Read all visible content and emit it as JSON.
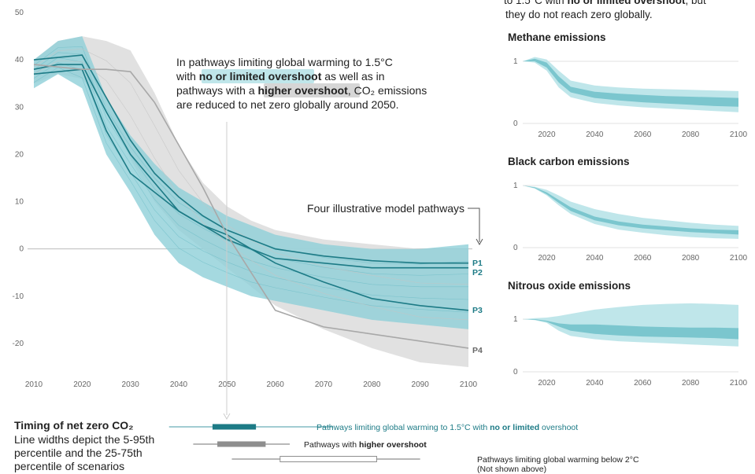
{
  "top_right_note": {
    "line1_prefix": "to 1.5°C with ",
    "line1_highlight": "no or limited overshoot",
    "line1_suffix": ", but",
    "line2": "they do not reach zero globally."
  },
  "annotation": {
    "line1": "In pathways limiting global warming to 1.5°C",
    "line2_prefix": "with ",
    "line2_highlight": "no or limited overshoot",
    "line2_suffix": " as well as in",
    "line3_prefix": "pathways with a ",
    "line3_highlight": "higher overshoot",
    "line3_suffix": ", CO₂ emissions",
    "line4": "are reduced to net zero globally around 2050."
  },
  "pathways_label": "Four illustrative model pathways",
  "colors": {
    "blue_dark": "#1d7b86",
    "blue_band": "#8fd0d8",
    "blue_band_light": "#bfe6ea",
    "grey_band": "#dcdcdc",
    "grey_line": "#a8a8a8"
  },
  "chart_data": [
    {
      "type": "area",
      "title": "",
      "xlabel": "",
      "ylabel": "",
      "xlim": [
        2010,
        2100
      ],
      "ylim": [
        -25,
        50
      ],
      "x_ticks": [
        2010,
        2020,
        2030,
        2040,
        2050,
        2060,
        2070,
        2080,
        2090,
        2100
      ],
      "y_ticks": [
        50,
        40,
        30,
        20,
        10,
        0,
        -10,
        -20
      ],
      "x": [
        2010,
        2015,
        2020,
        2025,
        2030,
        2035,
        2040,
        2045,
        2050,
        2055,
        2060,
        2070,
        2080,
        2090,
        2100
      ],
      "band_no_or_limited_overshoot": {
        "upper": [
          40,
          44,
          45,
          32,
          24,
          18,
          13,
          10,
          7,
          5,
          3,
          1,
          0,
          0,
          1
        ],
        "lower": [
          34,
          37,
          34,
          20,
          12,
          3,
          -3,
          -6,
          -8,
          -10,
          -11,
          -13,
          -15,
          -16,
          -17
        ]
      },
      "band_higher_overshoot": {
        "upper": [
          40,
          44,
          45,
          44,
          42,
          33,
          22,
          14,
          9,
          6,
          4,
          2,
          1,
          0,
          0
        ],
        "lower": [
          35,
          37,
          36,
          30,
          19,
          10,
          4,
          0,
          -4,
          -8,
          -12,
          -17,
          -21,
          -24,
          -25
        ]
      },
      "series": [
        {
          "name": "P1",
          "values": [
            40,
            40.5,
            41,
            32,
            23,
            16,
            11,
            7,
            4,
            2,
            0,
            -1.5,
            -2.5,
            -3,
            -3
          ]
        },
        {
          "name": "P2",
          "values": [
            38,
            39,
            39,
            29,
            20,
            14,
            8,
            5,
            2,
            0,
            -2,
            -3,
            -4,
            -4,
            -4
          ]
        },
        {
          "name": "P3",
          "values": [
            37,
            37.5,
            38,
            25,
            16,
            12,
            8,
            5,
            3,
            0,
            -3,
            -7,
            -10.5,
            -12,
            -13
          ]
        },
        {
          "name": "P4",
          "values": [
            39,
            38.5,
            38,
            38,
            37.5,
            31,
            22,
            13,
            3,
            -5,
            -13,
            -16.5,
            -18,
            -19.5,
            -21
          ]
        }
      ]
    },
    {
      "type": "area",
      "title": "Methane emissions",
      "xlim": [
        2010,
        2100
      ],
      "ylim": [
        0,
        1
      ],
      "x_ticks": [
        2020,
        2040,
        2060,
        2080,
        2100
      ],
      "y_ticks": [
        1,
        0
      ],
      "x": [
        2010,
        2015,
        2020,
        2025,
        2030,
        2040,
        2050,
        2060,
        2070,
        2080,
        2090,
        2100
      ],
      "outer": {
        "upper": [
          1,
          1.07,
          1.03,
          0.85,
          0.69,
          0.61,
          0.58,
          0.56,
          0.55,
          0.54,
          0.53,
          0.52
        ],
        "lower": [
          1,
          0.98,
          0.85,
          0.58,
          0.42,
          0.33,
          0.29,
          0.26,
          0.24,
          0.22,
          0.2,
          0.18
        ]
      },
      "inner": {
        "upper": [
          1,
          1.04,
          0.98,
          0.76,
          0.59,
          0.51,
          0.48,
          0.46,
          0.44,
          0.43,
          0.42,
          0.41
        ],
        "lower": [
          1,
          1.0,
          0.9,
          0.66,
          0.5,
          0.41,
          0.37,
          0.34,
          0.32,
          0.3,
          0.28,
          0.27
        ]
      }
    },
    {
      "type": "area",
      "title": "Black carbon emissions",
      "xlim": [
        2010,
        2100
      ],
      "ylim": [
        0,
        1
      ],
      "x_ticks": [
        2020,
        2040,
        2060,
        2080,
        2100
      ],
      "y_ticks": [
        1,
        0
      ],
      "x": [
        2010,
        2015,
        2020,
        2025,
        2030,
        2040,
        2050,
        2060,
        2070,
        2080,
        2090,
        2100
      ],
      "outer": {
        "upper": [
          1,
          0.98,
          0.93,
          0.84,
          0.74,
          0.62,
          0.54,
          0.48,
          0.44,
          0.4,
          0.37,
          0.35
        ],
        "lower": [
          1,
          0.95,
          0.84,
          0.68,
          0.54,
          0.38,
          0.29,
          0.24,
          0.2,
          0.17,
          0.15,
          0.14
        ]
      },
      "inner": {
        "upper": [
          1,
          0.97,
          0.89,
          0.77,
          0.65,
          0.5,
          0.42,
          0.37,
          0.34,
          0.31,
          0.29,
          0.28
        ],
        "lower": [
          1,
          0.96,
          0.86,
          0.72,
          0.59,
          0.44,
          0.36,
          0.31,
          0.28,
          0.25,
          0.23,
          0.21
        ]
      }
    },
    {
      "type": "area",
      "title": "Nitrous oxide emissions",
      "xlim": [
        2010,
        2100
      ],
      "ylim": [
        0,
        1
      ],
      "x_ticks": [
        2020,
        2040,
        2060,
        2080,
        2100
      ],
      "y_ticks": [
        1,
        0
      ],
      "x": [
        2010,
        2015,
        2020,
        2025,
        2030,
        2040,
        2050,
        2060,
        2070,
        2080,
        2090,
        2100
      ],
      "outer": {
        "upper": [
          1,
          1.02,
          1.03,
          1.06,
          1.1,
          1.18,
          1.23,
          1.27,
          1.29,
          1.3,
          1.29,
          1.27
        ],
        "lower": [
          1,
          0.98,
          0.93,
          0.78,
          0.68,
          0.62,
          0.58,
          0.56,
          0.54,
          0.52,
          0.5,
          0.48
        ]
      },
      "inner": {
        "upper": [
          1,
          1.0,
          0.97,
          0.92,
          0.9,
          0.9,
          0.88,
          0.86,
          0.85,
          0.84,
          0.84,
          0.83
        ],
        "lower": [
          1,
          0.99,
          0.95,
          0.86,
          0.78,
          0.72,
          0.69,
          0.67,
          0.66,
          0.65,
          0.64,
          0.62
        ]
      }
    }
  ],
  "timing": {
    "title": "Timing of net zero CO₂",
    "desc_line1": "Line widths depict the 5-95th",
    "desc_line2": "percentile and the 25-75th",
    "desc_line3": "percentile of scenarios",
    "rows": [
      {
        "label_prefix": "Pathways limiting global warming to 1.5°C with ",
        "label_bold": "no or limited",
        "label_suffix": " overshoot",
        "p5": 2038,
        "p25": 2047,
        "p75": 2056,
        "p95": 2072,
        "color": "#1d7b86",
        "line_color": "#6aaeb6"
      },
      {
        "label_prefix": "Pathways with ",
        "label_bold": "higher overshoot",
        "label_suffix": "",
        "p5": 2043,
        "p25": 2048,
        "p75": 2058,
        "p95": 2063,
        "color": "#8e8e8e",
        "line_color": "#8e8e8e"
      },
      {
        "label_prefix": "Pathways limiting global warming below 2°C",
        "label_bold": "",
        "label_suffix": "",
        "label_line2": "(Not shown above)",
        "p5": 2051,
        "p25": 2061,
        "p75": 2081,
        "p95": 2090,
        "color": "#ffffff",
        "line_color": "#8e8e8e"
      }
    ]
  }
}
